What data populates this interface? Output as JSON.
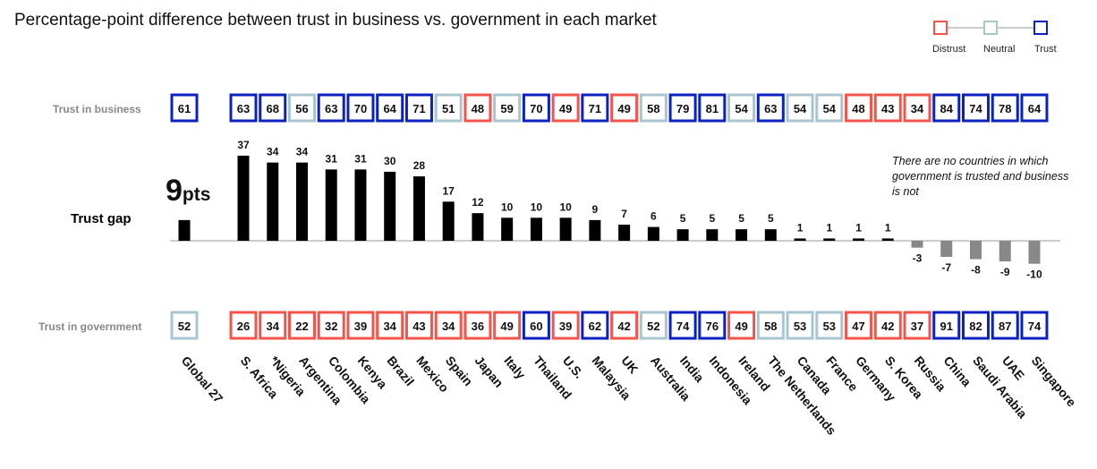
{
  "colors": {
    "distrust": "#f4544a",
    "neutral": "#a8c6cf",
    "trust": "#0b22c0",
    "bar_pos": "#000000",
    "bar_neg": "#888888"
  },
  "title": "Percentage-point difference between trust in business vs. government in each market",
  "legend": {
    "distrust": "Distrust",
    "neutral": "Neutral",
    "trust": "Trust"
  },
  "row_labels": {
    "business": "Trust in business",
    "government": "Trust in government",
    "gap": "Trust gap"
  },
  "global_gap": {
    "number": "9",
    "unit": "pts"
  },
  "note": "There are no countries in which government is trusted and business is not",
  "chart_data": {
    "type": "bar",
    "title": "Percentage-point difference between trust in business vs. government in each market",
    "categories": [
      "Global 27",
      "S. Africa",
      "*Nigeria",
      "Argentina",
      "Colombia",
      "Kenya",
      "Brazil",
      "Mexico",
      "Spain",
      "Japan",
      "Italy",
      "Thailand",
      "U.S.",
      "Malaysia",
      "UK",
      "Australia",
      "India",
      "Indonesia",
      "Ireland",
      "The Netherlands",
      "Canada",
      "France",
      "Germany",
      "S. Korea",
      "Russia",
      "China",
      "Saudi Arabia",
      "UAE",
      "Singapore"
    ],
    "trust_gap": [
      9,
      37,
      34,
      34,
      31,
      31,
      30,
      28,
      17,
      12,
      10,
      10,
      10,
      9,
      7,
      6,
      5,
      5,
      5,
      5,
      1,
      1,
      1,
      1,
      -3,
      -7,
      -8,
      -9,
      -10
    ],
    "trust_in_business": [
      61,
      63,
      68,
      56,
      63,
      70,
      64,
      71,
      51,
      48,
      59,
      70,
      49,
      71,
      49,
      58,
      79,
      81,
      54,
      63,
      54,
      54,
      48,
      43,
      34,
      84,
      74,
      78,
      64
    ],
    "trust_in_government": [
      52,
      26,
      34,
      22,
      32,
      39,
      34,
      43,
      34,
      36,
      49,
      60,
      39,
      62,
      42,
      52,
      74,
      76,
      49,
      58,
      53,
      53,
      47,
      42,
      37,
      91,
      82,
      87,
      74
    ],
    "thresholds": {
      "distrust_below": 50,
      "trust_from": 60
    }
  }
}
